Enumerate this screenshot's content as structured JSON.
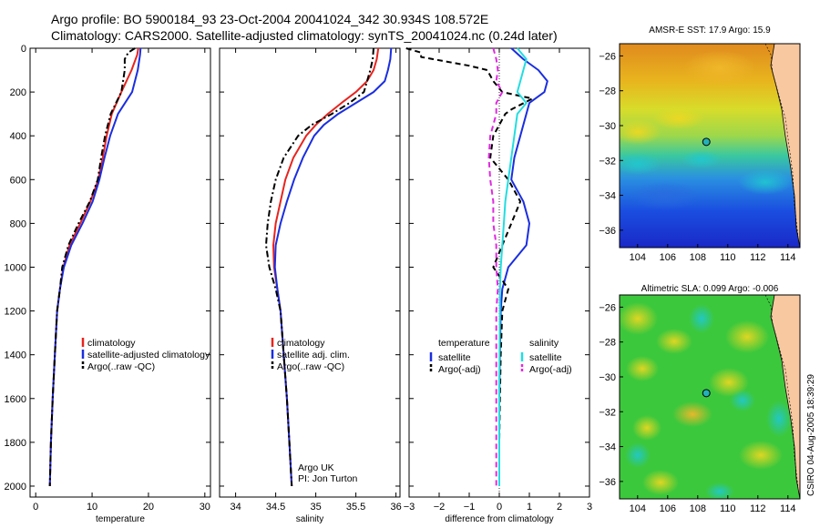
{
  "title_line1": "Argo profile: BO 5900184_93 23-Oct-2004 20041024_342 30.934S 108.572E",
  "title_line2": "Climatology: CARS2000. Satellite-adjusted climatology: synTS_20041024.nc (0.24d later)",
  "credit": "CSIRO 04-Aug-2005 18:39:29",
  "colors": {
    "climatology": "#e8231e",
    "satellite": "#1a2ee0",
    "argo": "#000000",
    "salinity_argo": "#e02ae0",
    "salinity_sat": "#22dde0",
    "marker": "#23b0b8"
  },
  "chart_data": [
    {
      "type": "line",
      "id": "temperature",
      "xlabel": "temperature",
      "xlim": [
        -1,
        31
      ],
      "ylim": [
        0,
        2050
      ],
      "xticks": [
        0,
        10,
        20,
        30
      ],
      "yticks": [
        0,
        200,
        400,
        600,
        800,
        1000,
        1200,
        1400,
        1600,
        1800,
        2000
      ],
      "y_reversed": true,
      "series": [
        {
          "name": "climatology",
          "color_key": "climatology",
          "dash": "",
          "depth": [
            0,
            30,
            100,
            200,
            300,
            400,
            500,
            600,
            700,
            800,
            900,
            1000,
            1100,
            1200,
            1400,
            1600,
            1800,
            2000
          ],
          "values": [
            18.2,
            18.0,
            17.0,
            15.2,
            13.5,
            12.6,
            11.9,
            11.1,
            9.7,
            7.9,
            6.0,
            4.9,
            4.3,
            3.8,
            3.4,
            3.0,
            2.7,
            2.5
          ]
        },
        {
          "name": "satellite-adjusted climatology",
          "color_key": "satellite",
          "dash": "",
          "depth": [
            0,
            30,
            100,
            200,
            300,
            400,
            500,
            600,
            700,
            800,
            900,
            1000,
            1100,
            1200,
            1400,
            1600,
            1800,
            2000
          ],
          "values": [
            18.6,
            18.5,
            18.1,
            17.1,
            14.6,
            13.2,
            12.2,
            11.3,
            10.1,
            8.3,
            6.3,
            5.0,
            4.3,
            3.8,
            3.4,
            3.0,
            2.7,
            2.5
          ]
        },
        {
          "name": "Argo(..raw -QC)",
          "color_key": "argo",
          "dash": "7 3 2 3",
          "depth": [
            0,
            20,
            50,
            100,
            200,
            300,
            400,
            500,
            600,
            700,
            800,
            900,
            1000,
            1100,
            1200,
            1400,
            1600,
            1800,
            2000
          ],
          "values": [
            17.6,
            16.4,
            15.8,
            15.8,
            15.2,
            13.3,
            12.3,
            11.6,
            11.0,
            9.6,
            7.6,
            5.8,
            4.7,
            4.3,
            3.8,
            3.4,
            3.0,
            2.7,
            2.5
          ]
        }
      ],
      "legend": [
        "climatology",
        "satellite-adjusted climatology",
        "Argo(..raw -QC)"
      ]
    },
    {
      "type": "line",
      "id": "salinity",
      "xlabel": "salinity",
      "xlim": [
        33.8,
        36.05
      ],
      "ylim": [
        0,
        2050
      ],
      "xticks": [
        34,
        34.5,
        35,
        35.5,
        36
      ],
      "y_reversed": true,
      "series": [
        {
          "name": "climatology",
          "color_key": "climatology",
          "dash": "",
          "depth": [
            0,
            50,
            100,
            150,
            200,
            250,
            300,
            350,
            400,
            500,
            600,
            700,
            800,
            900,
            1000,
            1100,
            1200,
            1400,
            1600,
            1800,
            2000
          ],
          "values": [
            35.78,
            35.76,
            35.72,
            35.64,
            35.5,
            35.32,
            35.15,
            35.0,
            34.88,
            34.72,
            34.62,
            34.56,
            34.5,
            34.47,
            34.48,
            34.52,
            34.56,
            34.6,
            34.64,
            34.67,
            34.7
          ]
        },
        {
          "name": "satellite adj. clim.",
          "color_key": "satellite",
          "dash": "",
          "depth": [
            0,
            50,
            100,
            150,
            200,
            250,
            300,
            350,
            400,
            500,
            600,
            700,
            800,
            900,
            1000,
            1100,
            1200,
            1400,
            1600,
            1800,
            2000
          ],
          "values": [
            35.94,
            35.93,
            35.9,
            35.86,
            35.72,
            35.5,
            35.28,
            35.1,
            34.98,
            34.84,
            34.73,
            34.64,
            34.56,
            34.5,
            34.49,
            34.52,
            34.56,
            34.6,
            34.64,
            34.67,
            34.7
          ]
        },
        {
          "name": "Argo(..raw -QC)",
          "color_key": "argo",
          "dash": "7 3 2 3",
          "depth": [
            0,
            50,
            100,
            150,
            200,
            250,
            300,
            350,
            400,
            500,
            600,
            700,
            800,
            900,
            1000,
            1100,
            1200,
            1400,
            1600,
            1800,
            2000
          ],
          "values": [
            35.72,
            35.71,
            35.68,
            35.64,
            35.6,
            35.42,
            35.2,
            34.95,
            34.78,
            34.6,
            34.5,
            34.44,
            34.4,
            34.38,
            34.42,
            34.5,
            34.56,
            34.6,
            34.64,
            34.67,
            34.7
          ]
        }
      ],
      "legend": [
        "climatology",
        "satellite adj. clim.",
        "Argo(..raw -QC)"
      ],
      "annotation": [
        "Argo UK",
        "PI: Jon Turton"
      ]
    },
    {
      "type": "line",
      "id": "difference",
      "xlabel": "difference from climatology",
      "xlim": [
        -3,
        3
      ],
      "ylim": [
        0,
        2050
      ],
      "xticks": [
        -3,
        -2,
        -1,
        0,
        1,
        2,
        3
      ],
      "y_reversed": true,
      "zero_line": true,
      "series": [
        {
          "name": "temperature satellite",
          "color_key": "satellite",
          "dash": "",
          "depth": [
            0,
            50,
            100,
            150,
            200,
            250,
            300,
            400,
            500,
            600,
            700,
            800,
            900,
            1000,
            1100,
            1200,
            1400,
            1600,
            1800,
            2000
          ],
          "values": [
            0.4,
            0.8,
            1.3,
            1.6,
            1.5,
            1.0,
            0.9,
            0.7,
            0.5,
            0.4,
            0.8,
            1.0,
            0.9,
            0.3,
            0.1,
            0.05,
            0.02,
            0.0,
            0.0,
            0.0
          ]
        },
        {
          "name": "temperature Argo(-adj)",
          "color_key": "argo",
          "dash": "6 4",
          "depth": [
            0,
            20,
            40,
            50,
            80,
            100,
            150,
            200,
            230,
            280,
            300,
            400,
            500,
            600,
            700,
            800,
            900,
            1000,
            1100,
            1200,
            1400,
            1600,
            1800,
            2000
          ],
          "values": [
            -3.1,
            -2.6,
            -2.6,
            -2.2,
            -1.0,
            -0.4,
            -0.2,
            0.1,
            1.1,
            0.4,
            0.2,
            -0.2,
            -0.3,
            0.3,
            0.7,
            0.4,
            0.1,
            -0.2,
            0.3,
            0.1,
            0.05,
            0.02,
            0.0,
            0.0
          ]
        },
        {
          "name": "salinity satellite",
          "color_key": "salinity_sat",
          "dash": "",
          "depth": [
            0,
            50,
            100,
            150,
            200,
            250,
            300,
            400,
            500,
            600,
            700,
            800,
            900,
            1000,
            1100,
            1200,
            1400,
            1600,
            1800,
            2000
          ],
          "values": [
            0.6,
            0.9,
            0.8,
            0.7,
            0.6,
            0.9,
            0.6,
            0.5,
            0.4,
            0.3,
            0.2,
            0.15,
            0.1,
            0.05,
            0.02,
            0.02,
            0.01,
            0.0,
            0.0,
            0.0
          ]
        },
        {
          "name": "salinity Argo(-adj)",
          "color_key": "salinity_argo",
          "dash": "6 4",
          "depth": [
            0,
            50,
            100,
            150,
            200,
            250,
            300,
            400,
            500,
            600,
            700,
            800,
            900,
            1000,
            1100,
            1200,
            1400,
            1600,
            1800,
            2000
          ],
          "values": [
            -0.2,
            -0.1,
            -0.05,
            -0.1,
            0.1,
            -0.1,
            -0.1,
            -0.3,
            -0.35,
            -0.3,
            -0.2,
            -0.2,
            -0.1,
            -0.1,
            -0.05,
            -0.1,
            -0.1,
            -0.1,
            -0.1,
            -0.1
          ]
        }
      ],
      "legend_left": {
        "header": "temperature",
        "items": [
          "satellite",
          "Argo(-adj)"
        ]
      },
      "legend_right": {
        "header": "salinity",
        "items": [
          "satellite",
          "Argo(-adj)"
        ]
      }
    },
    {
      "type": "heatmap",
      "id": "sst_map",
      "title": "AMSR-E SST: 17.9 Argo: 15.9",
      "xticks": [
        104,
        106,
        108,
        110,
        112,
        114
      ],
      "yticks": [
        -26,
        -28,
        -30,
        -32,
        -34,
        -36
      ],
      "xlim": [
        102.8,
        114.8
      ],
      "ylim": [
        -25.3,
        -37.0
      ],
      "marker": {
        "lon": 108.572,
        "lat": -30.934
      }
    },
    {
      "type": "heatmap",
      "id": "sla_map",
      "title": "Altimetric SLA: 0.099 Argo: -0.006",
      "xticks": [
        104,
        106,
        108,
        110,
        112,
        114
      ],
      "yticks": [
        -26,
        -28,
        -30,
        -32,
        -34,
        -36
      ],
      "xlim": [
        102.8,
        114.8
      ],
      "ylim": [
        -25.3,
        -37.0
      ],
      "marker": {
        "lon": 108.572,
        "lat": -30.934
      }
    }
  ]
}
